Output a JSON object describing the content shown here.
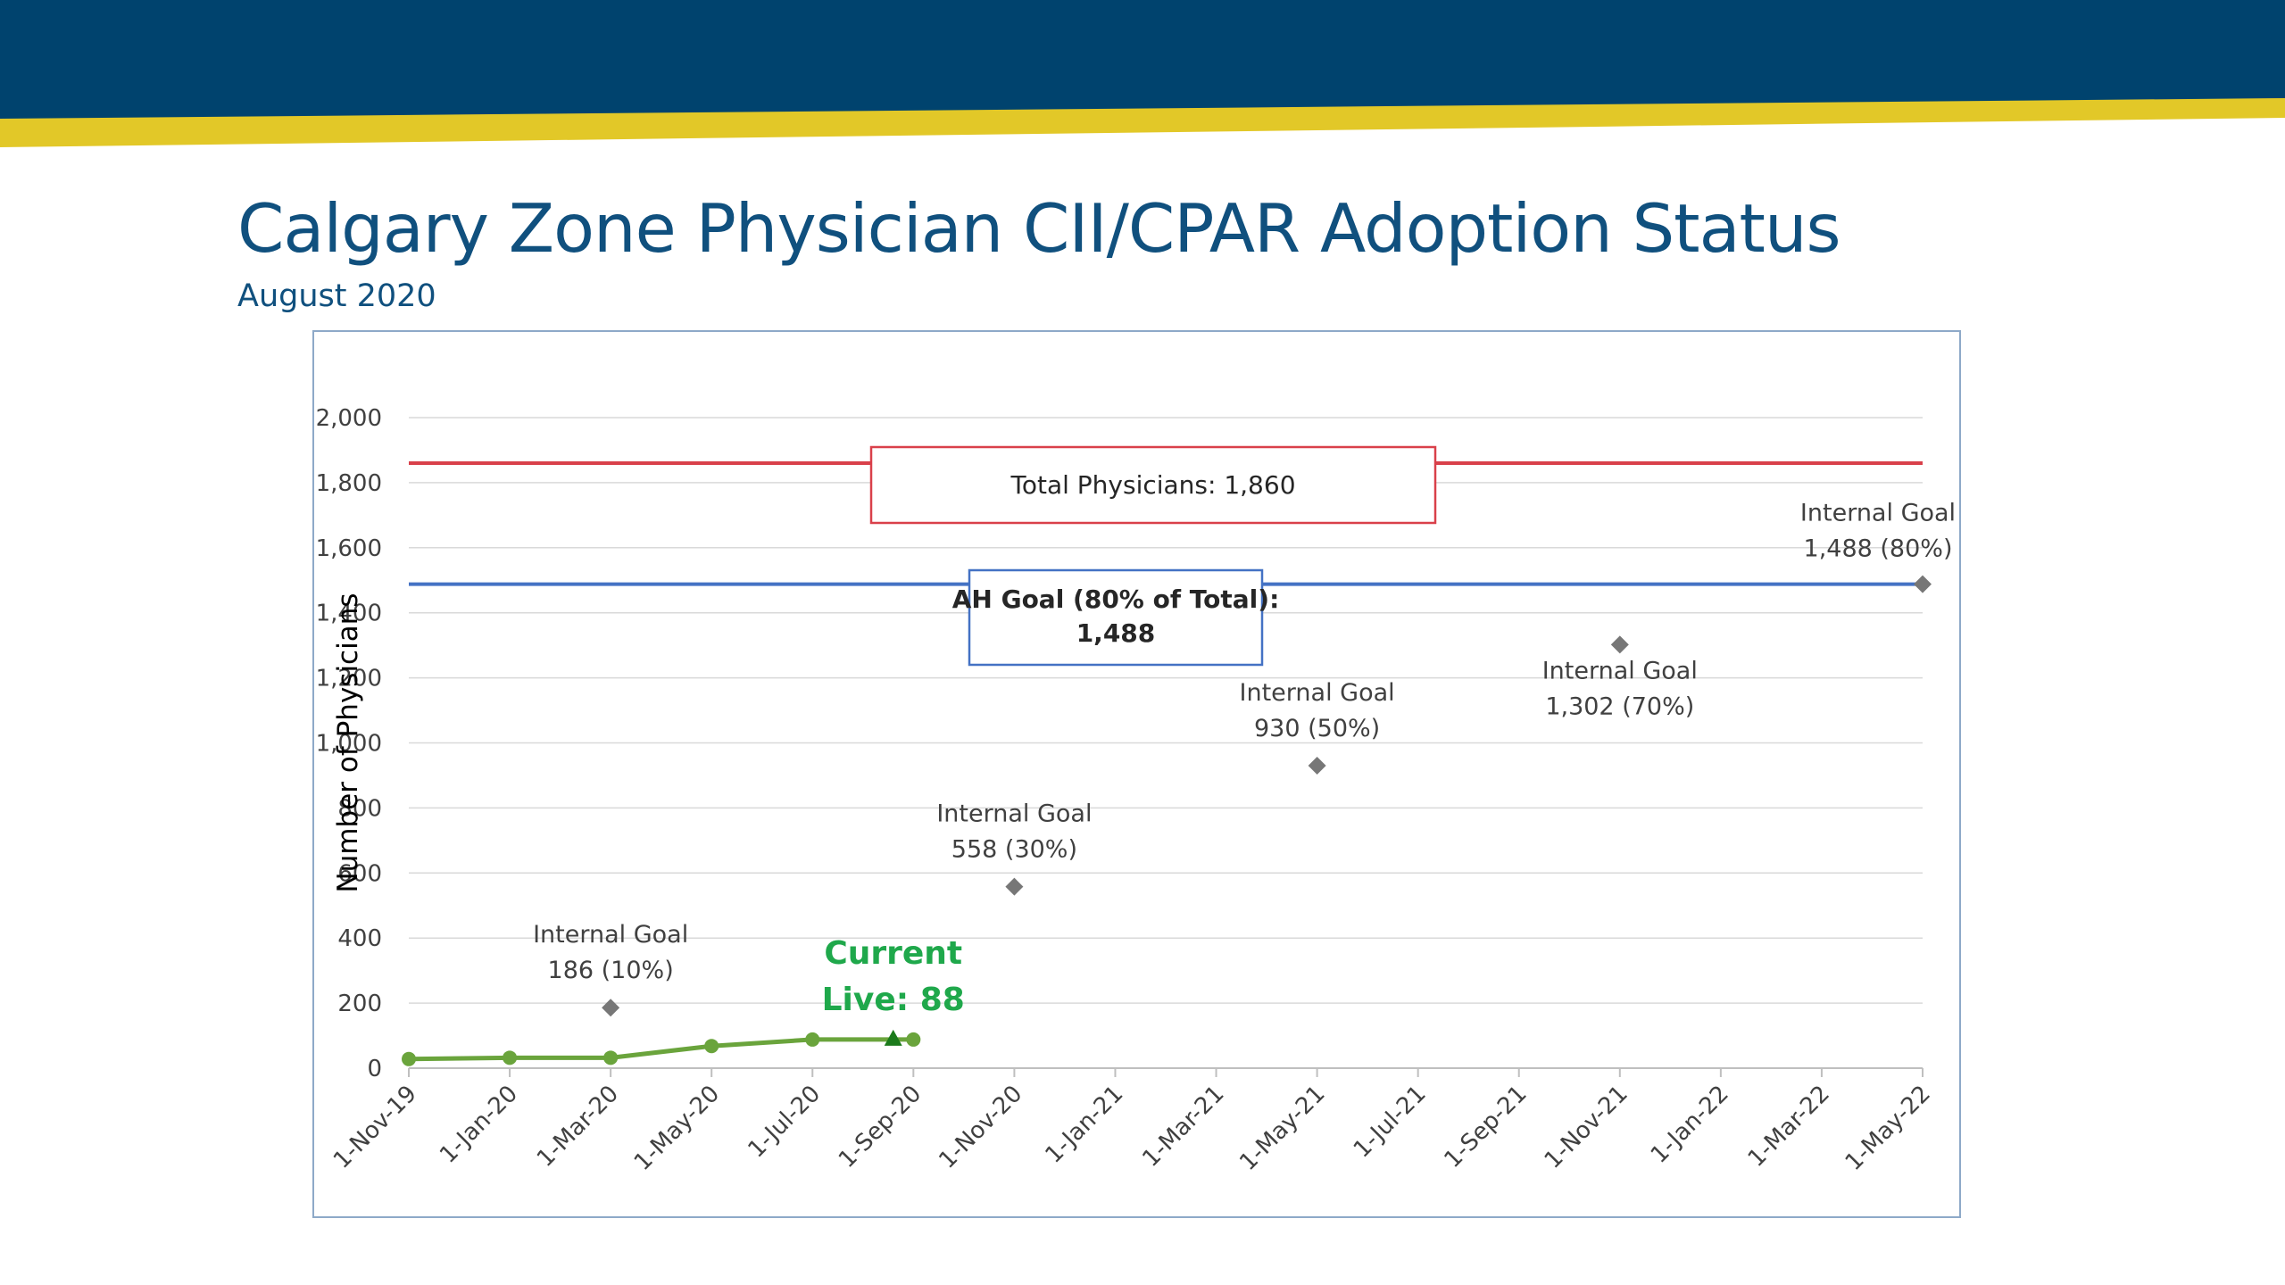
{
  "header": {
    "title": "Calgary Zone Physician CII/CPAR Adoption Status",
    "subtitle": "August 2020",
    "banner_color": "#00436e",
    "stripe_color": "#e2c828"
  },
  "chart_data": {
    "type": "line",
    "title": "",
    "xlabel": "",
    "ylabel": "Number of Physicians",
    "ylim": [
      0,
      2000
    ],
    "yticks": [
      0,
      200,
      400,
      600,
      800,
      1000,
      1200,
      1400,
      1600,
      1800,
      2000
    ],
    "ytick_labels": [
      "0",
      "200",
      "400",
      "600",
      "800",
      "1,000",
      "1,200",
      "1,400",
      "1,600",
      "1,800",
      "2,000"
    ],
    "x_categories": [
      "1-Nov-19",
      "1-Jan-20",
      "1-Mar-20",
      "1-May-20",
      "1-Jul-20",
      "1-Sep-20",
      "1-Nov-20",
      "1-Jan-21",
      "1-Mar-21",
      "1-May-21",
      "1-Jul-21",
      "1-Sep-21",
      "1-Nov-21",
      "1-Jan-22",
      "1-Mar-22",
      "1-May-22"
    ],
    "grid": true,
    "series": [
      {
        "kind": "line",
        "color": "#6aa43c",
        "points": [
          {
            "x": "1-Nov-19",
            "y": 28
          },
          {
            "x": "1-Jan-20",
            "y": 32
          },
          {
            "x": "1-Mar-20",
            "y": 32
          },
          {
            "x": "1-May-20",
            "y": 68
          },
          {
            "x": "1-Jul-20",
            "y": 88
          },
          {
            "x": "1-Sep-20",
            "y": 88
          }
        ]
      },
      {
        "kind": "scatter",
        "marker": "diamond",
        "color": "#777777",
        "points": [
          {
            "x": "1-Mar-20",
            "y": 186
          },
          {
            "x": "1-Nov-20",
            "y": 558
          },
          {
            "x": "1-May-21",
            "y": 930
          },
          {
            "x": "1-Nov-21",
            "y": 1302
          },
          {
            "x": "1-May-22",
            "y": 1488
          }
        ]
      }
    ],
    "reference_lines": [
      {
        "y": 1860,
        "color": "#d9404a",
        "label": "Total Physicians: 1,860"
      },
      {
        "y": 1488,
        "color": "#4472c4",
        "label_line1": "AH Goal (80% of Total):",
        "label_line2": "1,488"
      }
    ],
    "current_marker": {
      "x_index": 4.8,
      "y": 88,
      "color": "#1b7a1b",
      "line1": "Current",
      "line2": "Live: 88"
    },
    "annotations": [
      {
        "x": "1-Mar-20",
        "line1": "Internal Goal",
        "line2": "186 (10%)"
      },
      {
        "x": "1-Nov-20",
        "line1": "Internal Goal",
        "line2": "558 (30%)"
      },
      {
        "x": "1-May-21",
        "line1": "Internal Goal",
        "line2": "930 (50%)"
      },
      {
        "x": "1-Nov-21",
        "line1": "Internal Goal",
        "line2": "1,302 (70%)"
      },
      {
        "x": "1-May-22",
        "line1": "Internal Goal",
        "line2": "1,488 (80%)"
      }
    ]
  }
}
